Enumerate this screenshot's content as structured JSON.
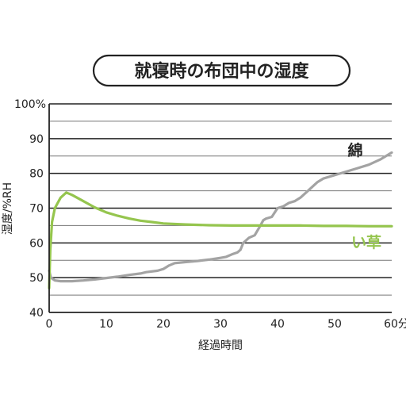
{
  "chart_data": {
    "type": "line",
    "title": "就寝時の布団中の湿度",
    "xlabel": "経過時間",
    "ylabel": "湿度/%RH",
    "x_unit_label": "分",
    "xlim": [
      0,
      60
    ],
    "ylim": [
      40,
      100
    ],
    "x_ticks": [
      "0",
      "10",
      "20",
      "30",
      "40",
      "50",
      "60分"
    ],
    "y_ticks": [
      "40",
      "50",
      "60",
      "70",
      "80",
      "90",
      "100%"
    ],
    "grid": true,
    "series": [
      {
        "name": "綿",
        "color": "#a3a3a3",
        "x": [
          0,
          0.3,
          1,
          2,
          3,
          4,
          6,
          8,
          10,
          12,
          14,
          16,
          17,
          19,
          20,
          21,
          22,
          24,
          26,
          28,
          30,
          31,
          32,
          33,
          33.5,
          34,
          35,
          36,
          37,
          37.5,
          38,
          39,
          40,
          41,
          42,
          43,
          44,
          45,
          46,
          47,
          48,
          50,
          52,
          54,
          56,
          58,
          59,
          60
        ],
        "values": [
          52,
          50,
          49.2,
          49,
          49,
          49,
          49.2,
          49.5,
          49.9,
          50.3,
          50.8,
          51.2,
          51.6,
          52,
          52.5,
          53.5,
          54.2,
          54.5,
          54.8,
          55.2,
          55.7,
          56,
          56.7,
          57.3,
          58,
          60,
          61.5,
          62.2,
          65,
          66.5,
          67,
          67.5,
          70,
          70.5,
          71.5,
          72,
          73,
          74.5,
          76,
          77.5,
          78.5,
          79.5,
          80.5,
          81.5,
          82.5,
          84,
          85,
          86
        ]
      },
      {
        "name": "い草",
        "color": "#95c54e",
        "x": [
          0,
          0.2,
          0.5,
          1,
          2,
          3,
          4,
          6,
          8,
          10,
          12,
          14,
          16,
          18,
          20,
          24,
          28,
          32,
          36,
          40,
          44,
          48,
          52,
          56,
          60
        ],
        "values": [
          47,
          58,
          66,
          70,
          73,
          74.5,
          73.8,
          72,
          70.2,
          68.8,
          67.8,
          67,
          66.4,
          66,
          65.6,
          65.3,
          65.1,
          65,
          65,
          65,
          65,
          64.9,
          64.9,
          64.8,
          64.8
        ]
      }
    ]
  }
}
